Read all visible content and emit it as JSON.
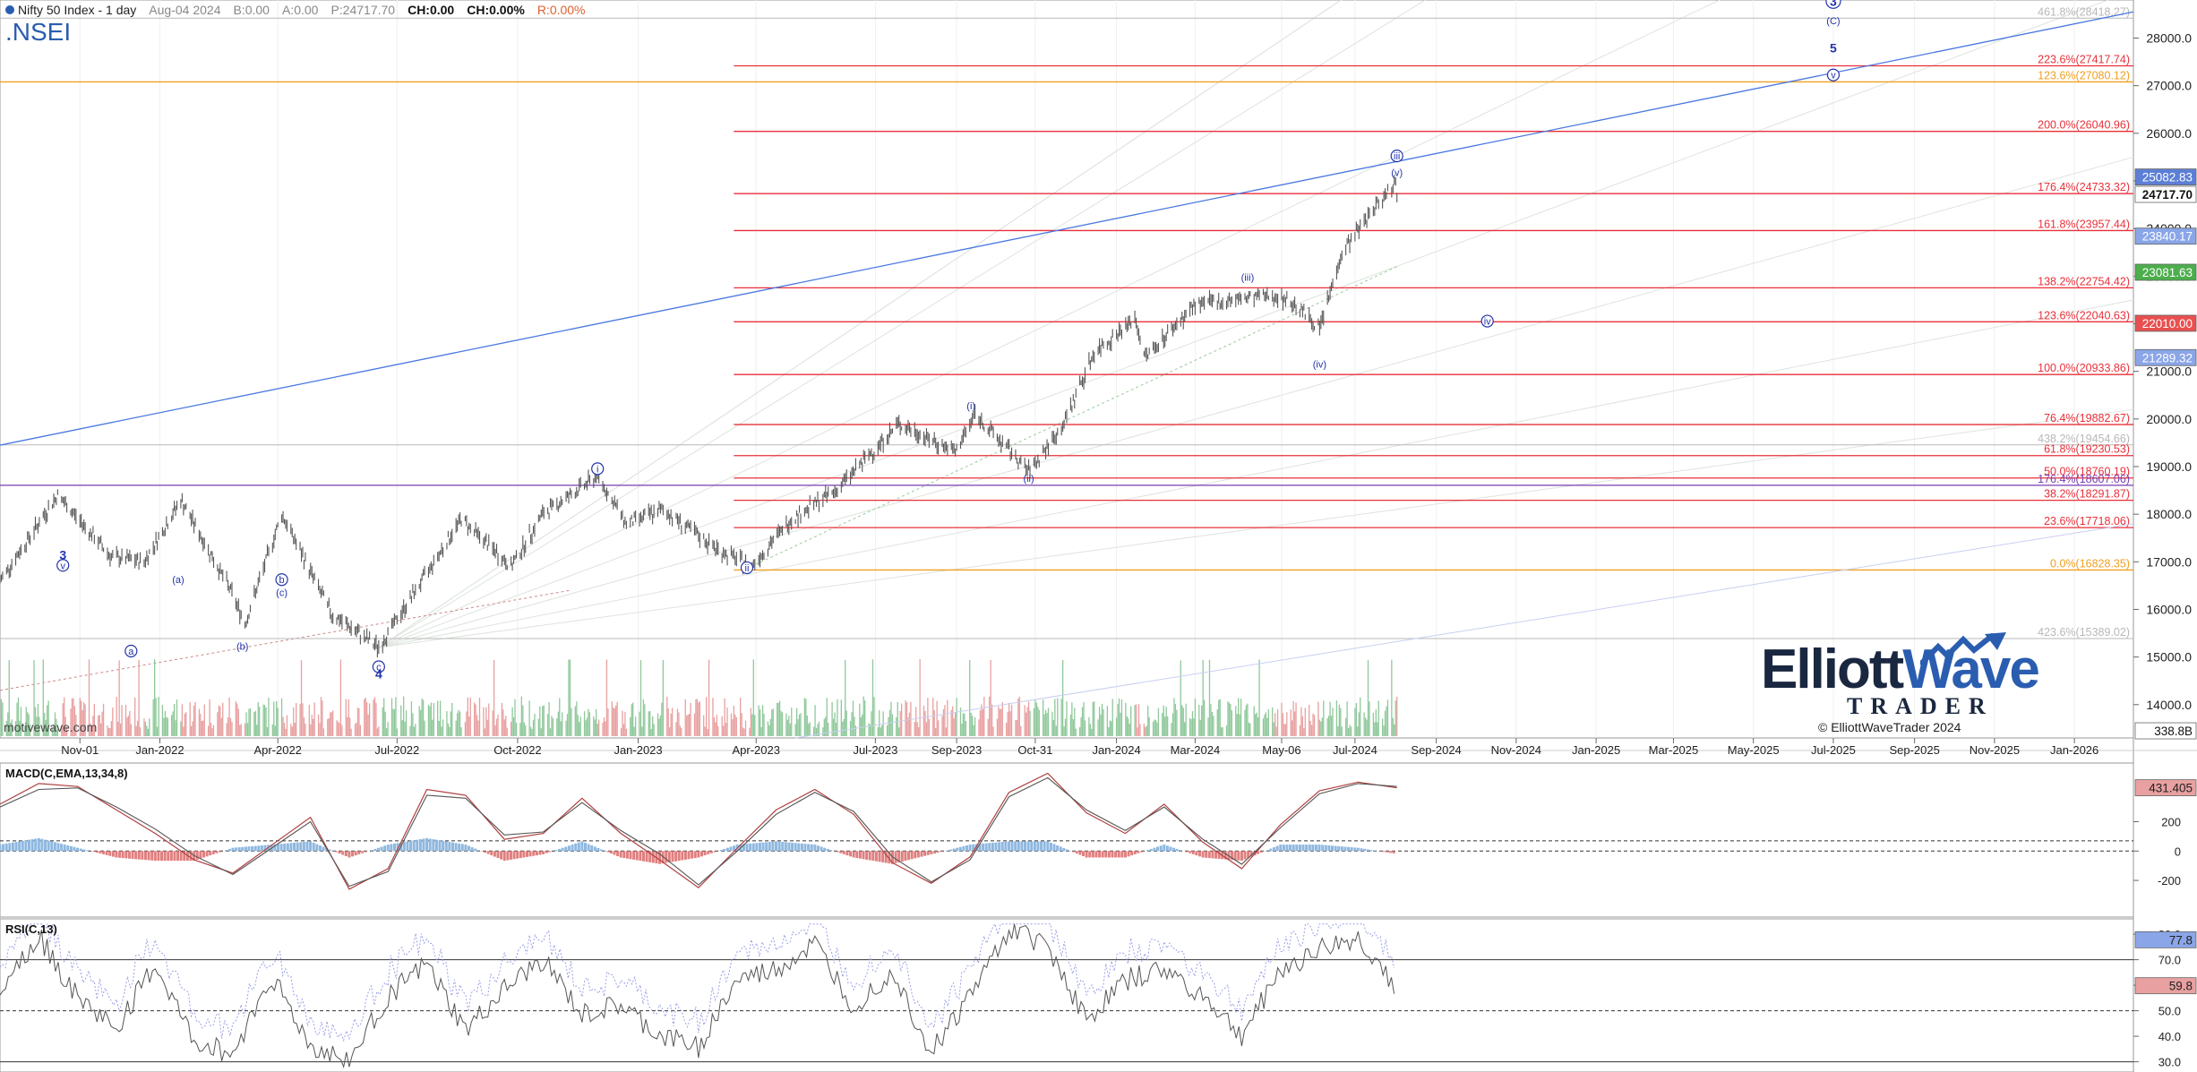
{
  "header": {
    "title": "Nifty 50 Index - 1 day",
    "date": "Aug-04 2024",
    "bid": "B:0.00",
    "ask": "A:0.00",
    "price": "P:24717.70",
    "change": "CH:0.00",
    "change_pct": "CH:0.00%",
    "range": "R:0.00%"
  },
  "symbol": ".NSEI",
  "watermark": "motivewave.com",
  "logo": {
    "word1": "Elliott",
    "word2": "Wave",
    "word3": "TRADER",
    "copyright": "© ElliottWaveTrader 2024"
  },
  "colors": {
    "fib_red": "#e8303a",
    "fib_orange": "#f0a020",
    "wave_blue": "#2233aa",
    "trend_blue": "#4a78e0",
    "macd_up": "#8fb8e0",
    "macd_down": "#e08080",
    "vol_up": "#8fc89a",
    "vol_down": "#e8a0a0"
  },
  "chart_data": [
    {
      "type": "line",
      "panel": "price",
      "title": "Nifty 50 Index - 1 day",
      "x_ticks": [
        "Nov-01",
        "Jan-2022",
        "Apr-2022",
        "Jul-2022",
        "Oct-2022",
        "Jan-2023",
        "Apr-2023",
        "Jul-2023",
        "Sep-2023",
        "Oct-31",
        "Jan-2024",
        "Mar-2024",
        "May-06",
        "Jul-2024",
        "Sep-2024",
        "Nov-2024",
        "Jan-2025",
        "Mar-2025",
        "May-2025",
        "Jul-2025",
        "Sep-2025",
        "Nov-2025",
        "Jan-2026"
      ],
      "y_ticks": [
        14000,
        15000,
        16000,
        17000,
        18000,
        19000,
        20000,
        21000,
        22000,
        23000,
        24000,
        25000,
        26000,
        27000,
        28000
      ],
      "ylim": [
        13300,
        28800
      ],
      "series": [
        {
          "x": [
            "2021-09-01",
            "2021-10-15",
            "2021-11-25",
            "2021-12-20",
            "2022-01-17",
            "2022-02-24",
            "2022-03-07",
            "2022-04-04",
            "2022-05-12",
            "2022-06-17",
            "2022-07-20",
            "2022-08-19",
            "2022-09-26",
            "2022-10-20",
            "2022-12-01",
            "2022-12-23",
            "2023-01-20",
            "2023-02-28",
            "2023-03-28",
            "2023-04-28",
            "2023-06-01",
            "2023-07-19",
            "2023-08-31",
            "2023-09-15",
            "2023-10-26",
            "2023-11-20",
            "2023-12-15",
            "2024-01-15",
            "2024-01-23",
            "2024-03-01",
            "2024-04-30",
            "2024-05-17",
            "2024-06-04",
            "2024-06-21",
            "2024-07-12",
            "2024-08-01",
            "2024-08-02"
          ],
          "close": [
            16600,
            18400,
            17100,
            17000,
            18300,
            16400,
            15700,
            18000,
            15900,
            15200,
            16600,
            17900,
            16900,
            18000,
            18800,
            17800,
            18100,
            17300,
            16900,
            17900,
            18500,
            19900,
            19300,
            20100,
            18900,
            19800,
            21400,
            22100,
            21300,
            22400,
            22600,
            22400,
            21900,
            23500,
            24300,
            25000,
            24717.7
          ]
        }
      ],
      "fib_levels": [
        {
          "label": "461.8%(28418.27)",
          "value": 28418.27,
          "color": "gray"
        },
        {
          "label": "223.6%(27417.74)",
          "value": 27417.74,
          "color": "red"
        },
        {
          "label": "123.6%(27080.12)",
          "value": 27080.12,
          "color": "orange"
        },
        {
          "label": "200.0%(26040.96)",
          "value": 26040.96,
          "color": "red"
        },
        {
          "label": "176.4%(24733.32)",
          "value": 24733.32,
          "color": "red"
        },
        {
          "label": "161.8%(23957.44)",
          "value": 23957.44,
          "color": "red"
        },
        {
          "label": "138.2%(22754.42)",
          "value": 22754.42,
          "color": "red"
        },
        {
          "label": "123.6%(22040.63)",
          "value": 22040.63,
          "color": "red"
        },
        {
          "label": "100.0%(20933.86)",
          "value": 20933.86,
          "color": "red"
        },
        {
          "label": "76.4%(19882.67)",
          "value": 19882.67,
          "color": "red"
        },
        {
          "label": "438.2%(19454.66)",
          "value": 19454.66,
          "color": "gray"
        },
        {
          "label": "61.8%(19230.53)",
          "value": 19230.53,
          "color": "red"
        },
        {
          "label": "50.0%(18760.19)",
          "value": 18760.19,
          "color": "red"
        },
        {
          "label": "176.4%(18607.06)",
          "value": 18607.06,
          "color": "purple"
        },
        {
          "label": "38.2%(18291.87)",
          "value": 18291.87,
          "color": "red"
        },
        {
          "label": "23.6%(17718.06)",
          "value": 17718.06,
          "color": "red"
        },
        {
          "label": "0.0%(16828.35)",
          "value": 16828.35,
          "color": "orange"
        },
        {
          "label": "423.6%(15389.02)",
          "value": 15389.02,
          "color": "gray"
        }
      ],
      "price_boxes": [
        {
          "label": "25082.83",
          "value": 25082.83,
          "color": "#5c7fd6"
        },
        {
          "label": "24717.70",
          "value": 24717.7,
          "color": "#ffffff"
        },
        {
          "label": "23840.17",
          "value": 23840.17,
          "color": "#8aa6e8"
        },
        {
          "label": "23081.63",
          "value": 23081.63,
          "color": "#4cae4c"
        },
        {
          "label": "22010.00",
          "value": 22010.0,
          "color": "#e85050"
        },
        {
          "label": "21289.32",
          "value": 21289.32,
          "color": "#8aa6e8"
        },
        {
          "label": "338.8B",
          "value": 13450,
          "color": "#ffffff"
        }
      ],
      "wave_labels": [
        {
          "text": "3",
          "x": "2021-10-19",
          "y": 17050,
          "bold": true
        },
        {
          "text": "v",
          "x": "2021-10-19",
          "y": 16850,
          "circle": true
        },
        {
          "text": "a",
          "x": "2021-12-10",
          "y": 15050,
          "circle": true
        },
        {
          "text": "(a)",
          "x": "2022-01-15",
          "y": 16550
        },
        {
          "text": "(b)",
          "x": "2022-03-05",
          "y": 15150
        },
        {
          "text": "b",
          "x": "2022-04-04",
          "y": 16550,
          "circle": true
        },
        {
          "text": "(c)",
          "x": "2022-04-04",
          "y": 16280
        },
        {
          "text": "c",
          "x": "2022-06-17",
          "y": 14720,
          "circle": true
        },
        {
          "text": "4",
          "x": "2022-06-17",
          "y": 14550,
          "bold": true
        },
        {
          "text": "i",
          "x": "2022-12-01",
          "y": 18880,
          "circle": true
        },
        {
          "text": "ii",
          "x": "2023-03-25",
          "y": 16800,
          "circle": true
        },
        {
          "text": "(i)",
          "x": "2023-09-12",
          "y": 20200
        },
        {
          "text": "(ii)",
          "x": "2023-10-26",
          "y": 18680
        },
        {
          "text": "(iii)",
          "x": "2024-04-10",
          "y": 22900
        },
        {
          "text": "(iv)",
          "x": "2024-06-04",
          "y": 21080
        },
        {
          "text": "iv",
          "x": "2024-10-10",
          "y": 21980,
          "circle": true
        },
        {
          "text": "(v)",
          "x": "2024-08-02",
          "y": 25100
        },
        {
          "text": "iii",
          "x": "2024-08-02",
          "y": 25450,
          "circle": true
        },
        {
          "text": "3",
          "x": "2025-07-01",
          "y": 28700,
          "circle": true,
          "bold": true
        },
        {
          "text": "(C)",
          "x": "2025-07-01",
          "y": 28290
        },
        {
          "text": "5",
          "x": "2025-07-01",
          "y": 27700,
          "bold": true
        },
        {
          "text": "v",
          "x": "2025-07-01",
          "y": 27150,
          "circle": true
        }
      ]
    },
    {
      "type": "line",
      "panel": "macd",
      "title": "MACD(C,EMA,13,34,8)",
      "y_ticks": [
        -200,
        0,
        200
      ],
      "ylim": [
        -450,
        600
      ],
      "value_label": "431.405",
      "series": [
        {
          "name": "macd",
          "values": [
            320,
            460,
            440,
            280,
            120,
            -60,
            -150,
            40,
            230,
            -260,
            -120,
            420,
            380,
            80,
            120,
            360,
            120,
            -60,
            -250,
            20,
            280,
            420,
            250,
            -80,
            -220,
            -40,
            400,
            530,
            260,
            120,
            320,
            60,
            -120,
            180,
            410,
            470,
            431
          ]
        },
        {
          "name": "signal",
          "values": [
            300,
            420,
            430,
            300,
            150,
            -30,
            -160,
            20,
            200,
            -240,
            -140,
            380,
            360,
            110,
            130,
            330,
            140,
            -20,
            -230,
            0,
            250,
            400,
            270,
            -40,
            -210,
            -60,
            370,
            500,
            280,
            140,
            300,
            80,
            -90,
            160,
            390,
            460,
            440
          ]
        }
      ]
    },
    {
      "type": "line",
      "panel": "rsi",
      "title": "RSI(C,13)",
      "y_ticks": [
        30.0,
        40.0,
        50.0,
        60.0,
        70.0,
        80.0
      ],
      "ylim": [
        26,
        86
      ],
      "value_labels": [
        "77.8",
        "59.8"
      ],
      "series": [
        {
          "name": "rsi",
          "values": [
            60,
            79,
            55,
            43,
            68,
            38,
            33,
            64,
            36,
            30,
            56,
            68,
            42,
            58,
            70,
            48,
            52,
            40,
            36,
            62,
            66,
            76,
            52,
            66,
            34,
            56,
            82,
            76,
            46,
            62,
            66,
            56,
            40,
            66,
            74,
            78,
            59.8
          ]
        }
      ]
    }
  ]
}
